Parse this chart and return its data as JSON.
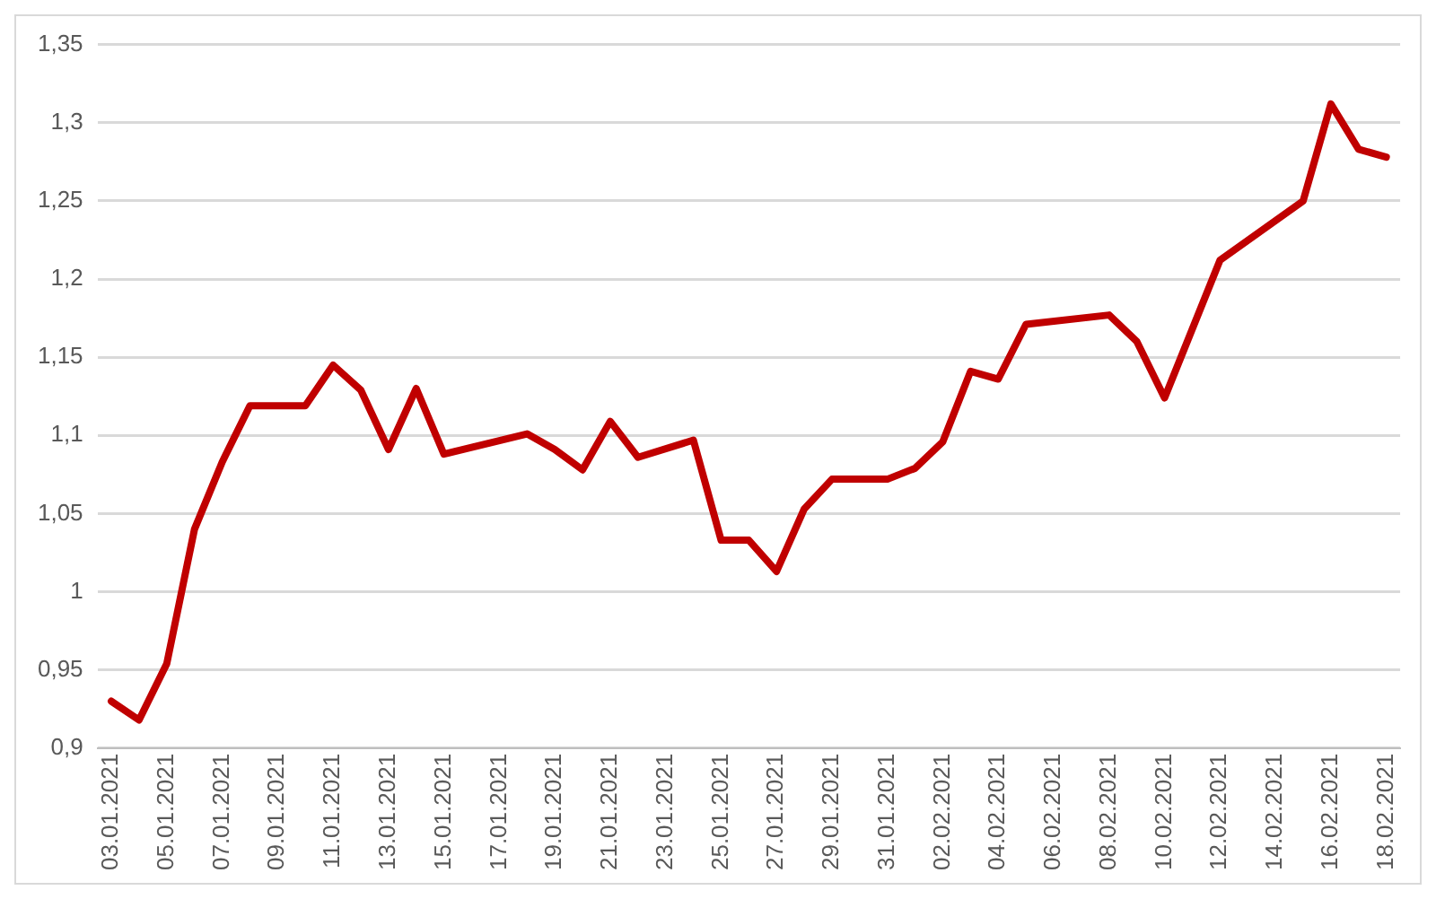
{
  "chart_data": {
    "type": "line",
    "x": [
      "2021-01-03",
      "2021-01-04",
      "2021-01-05",
      "2021-01-06",
      "2021-01-07",
      "2021-01-08",
      "2021-01-10",
      "2021-01-11",
      "2021-01-12",
      "2021-01-13",
      "2021-01-14",
      "2021-01-15",
      "2021-01-18",
      "2021-01-19",
      "2021-01-20",
      "2021-01-21",
      "2021-01-22",
      "2021-01-24",
      "2021-01-25",
      "2021-01-26",
      "2021-01-27",
      "2021-01-28",
      "2021-01-29",
      "2021-01-31",
      "2021-02-01",
      "2021-02-02",
      "2021-02-03",
      "2021-02-04",
      "2021-02-05",
      "2021-02-08",
      "2021-02-09",
      "2021-02-10",
      "2021-02-12",
      "2021-02-15",
      "2021-02-16",
      "2021-02-17",
      "2021-02-18"
    ],
    "series": [
      {
        "color": "#c00000",
        "values": [
          0.93,
          0.918,
          0.954,
          1.04,
          1.083,
          1.119,
          1.119,
          1.145,
          1.129,
          1.091,
          1.13,
          1.088,
          1.101,
          1.091,
          1.078,
          1.109,
          1.086,
          1.097,
          1.033,
          1.033,
          1.013,
          1.053,
          1.072,
          1.072,
          1.079,
          1.096,
          1.141,
          1.136,
          1.171,
          1.177,
          1.16,
          1.124,
          1.212,
          1.25,
          1.312,
          1.283,
          1.278
        ]
      }
    ],
    "xlim": [
      "2021-01-02T12:00",
      "2021-02-18T12:00"
    ],
    "xticks": [
      {
        "value": "2021-01-03",
        "label": "03.01.2021"
      },
      {
        "value": "2021-01-05",
        "label": "05.01.2021"
      },
      {
        "value": "2021-01-07",
        "label": "07.01.2021"
      },
      {
        "value": "2021-01-09",
        "label": "09.01.2021"
      },
      {
        "value": "2021-01-11",
        "label": "11.01.2021"
      },
      {
        "value": "2021-01-13",
        "label": "13.01.2021"
      },
      {
        "value": "2021-01-15",
        "label": "15.01.2021"
      },
      {
        "value": "2021-01-17",
        "label": "17.01.2021"
      },
      {
        "value": "2021-01-19",
        "label": "19.01.2021"
      },
      {
        "value": "2021-01-21",
        "label": "21.01.2021"
      },
      {
        "value": "2021-01-23",
        "label": "23.01.2021"
      },
      {
        "value": "2021-01-25",
        "label": "25.01.2021"
      },
      {
        "value": "2021-01-27",
        "label": "27.01.2021"
      },
      {
        "value": "2021-01-29",
        "label": "29.01.2021"
      },
      {
        "value": "2021-01-31",
        "label": "31.01.2021"
      },
      {
        "value": "2021-02-02",
        "label": "02.02.2021"
      },
      {
        "value": "2021-02-04",
        "label": "04.02.2021"
      },
      {
        "value": "2021-02-06",
        "label": "06.02.2021"
      },
      {
        "value": "2021-02-08",
        "label": "08.02.2021"
      },
      {
        "value": "2021-02-10",
        "label": "10.02.2021"
      },
      {
        "value": "2021-02-12",
        "label": "12.02.2021"
      },
      {
        "value": "2021-02-14",
        "label": "14.02.2021"
      },
      {
        "value": "2021-02-16",
        "label": "16.02.2021"
      },
      {
        "value": "2021-02-18",
        "label": "18.02.2021"
      }
    ],
    "ylim": [
      0.9,
      1.35
    ],
    "yticks": [
      {
        "value": 0.9,
        "label": "0,9"
      },
      {
        "value": 0.95,
        "label": "0,95"
      },
      {
        "value": 1,
        "label": "1"
      },
      {
        "value": 1.05,
        "label": "1,05"
      },
      {
        "value": 1.1,
        "label": "1,1"
      },
      {
        "value": 1.15,
        "label": "1,15"
      },
      {
        "value": 1.2,
        "label": "1,2"
      },
      {
        "value": 1.25,
        "label": "1,25"
      },
      {
        "value": 1.3,
        "label": "1,3"
      },
      {
        "value": 1.35,
        "label": "1,35"
      }
    ],
    "grid": "y",
    "legend": false,
    "marker": "none",
    "line_style": "solid"
  }
}
